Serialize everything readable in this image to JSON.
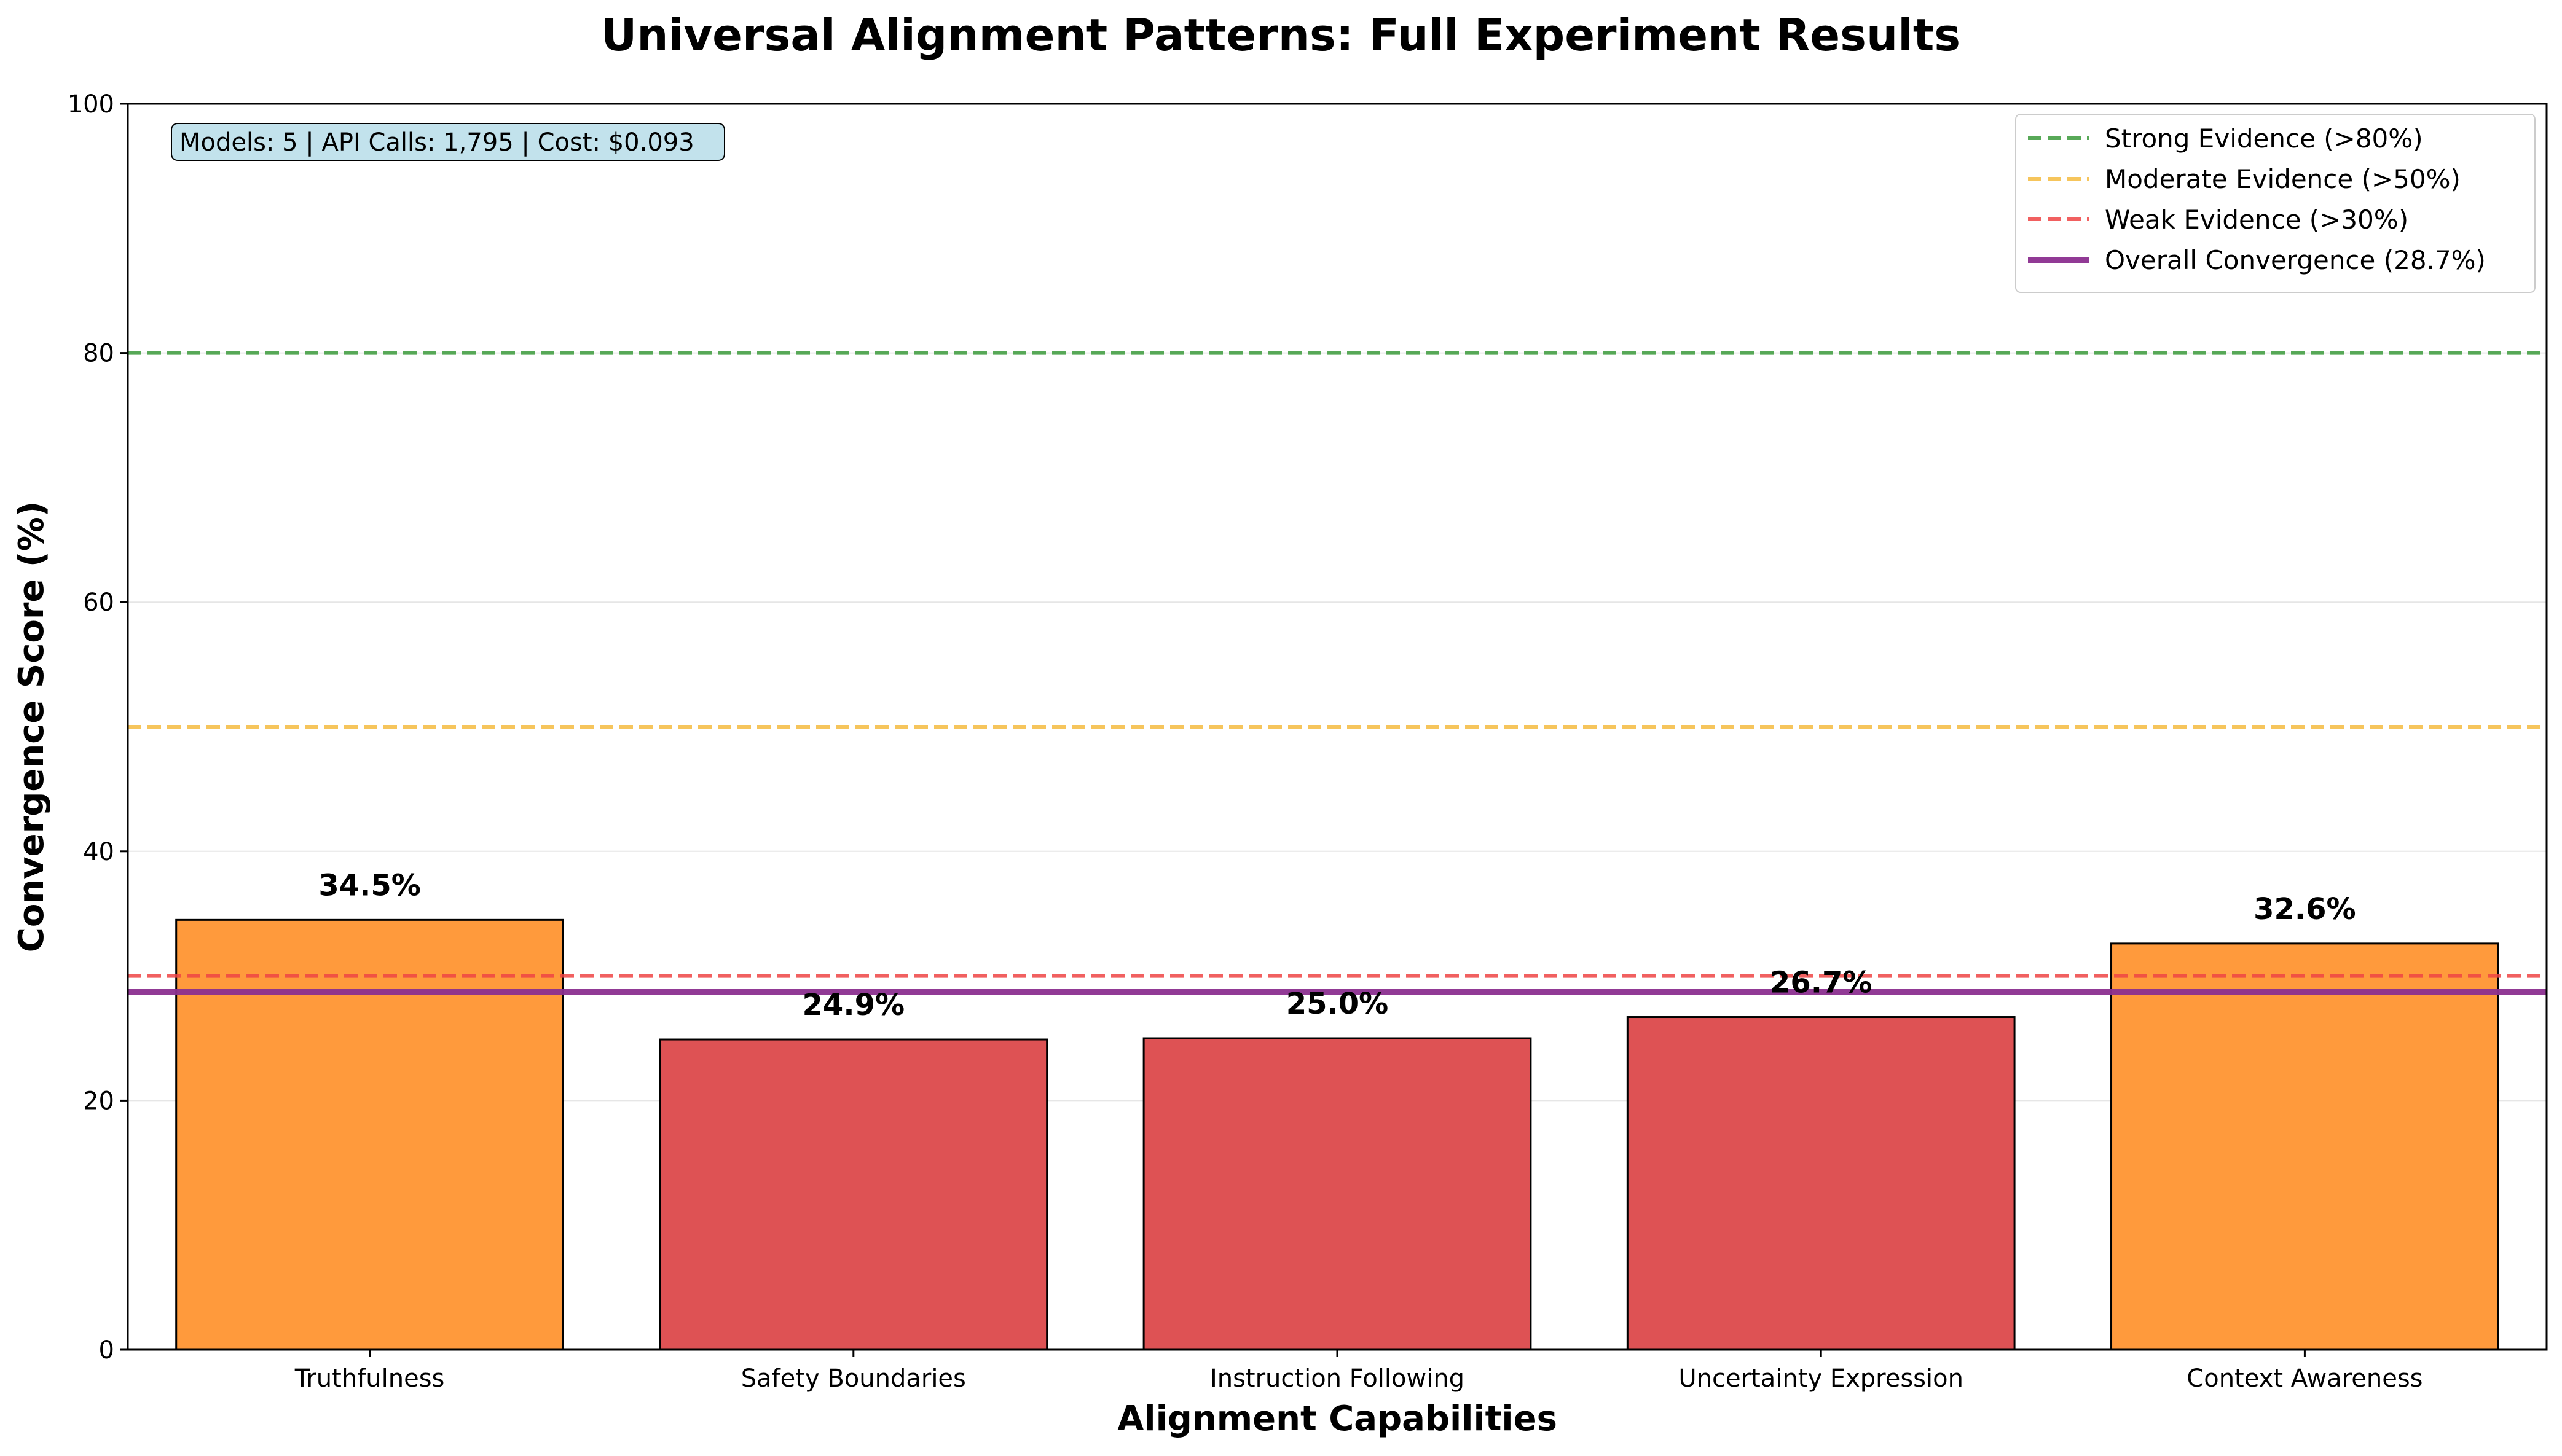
{
  "chart_data": {
    "type": "bar",
    "title": "Universal Alignment Patterns: Full Experiment Results",
    "xlabel": "Alignment Capabilities",
    "ylabel": "Convergence Score (%)",
    "ylim": [
      0,
      100
    ],
    "yticks": [
      0,
      20,
      40,
      60,
      80,
      100
    ],
    "grid": "y",
    "categories": [
      "Truthfulness",
      "Safety Boundaries",
      "Instruction Following",
      "Uncertainty Expression",
      "Context Awareness"
    ],
    "values": [
      34.5,
      24.9,
      25.0,
      26.7,
      32.6
    ],
    "value_labels": [
      "34.5%",
      "24.9%",
      "25.0%",
      "26.7%",
      "32.6%"
    ],
    "bar_colors": [
      "#ff9a3c",
      "#de5254",
      "#de5254",
      "#de5254",
      "#ff9a3c"
    ],
    "reference_lines": [
      {
        "label": "Strong Evidence (>80%)",
        "value": 80,
        "color": "#3b9a3b",
        "style": "dashed"
      },
      {
        "label": "Moderate Evidence (>50%)",
        "value": 50,
        "color": "#f5bb40",
        "style": "dashed"
      },
      {
        "label": "Weak Evidence (>30%)",
        "value": 30,
        "color": "#ee4444",
        "style": "dashed"
      },
      {
        "label": "Overall Convergence (28.7%)",
        "value": 28.7,
        "color": "#8b2f8f",
        "style": "solid"
      }
    ],
    "legend_position": "top-right",
    "annotation": "Models: 5 | API Calls: 1,795 | Cost: $0.093"
  }
}
